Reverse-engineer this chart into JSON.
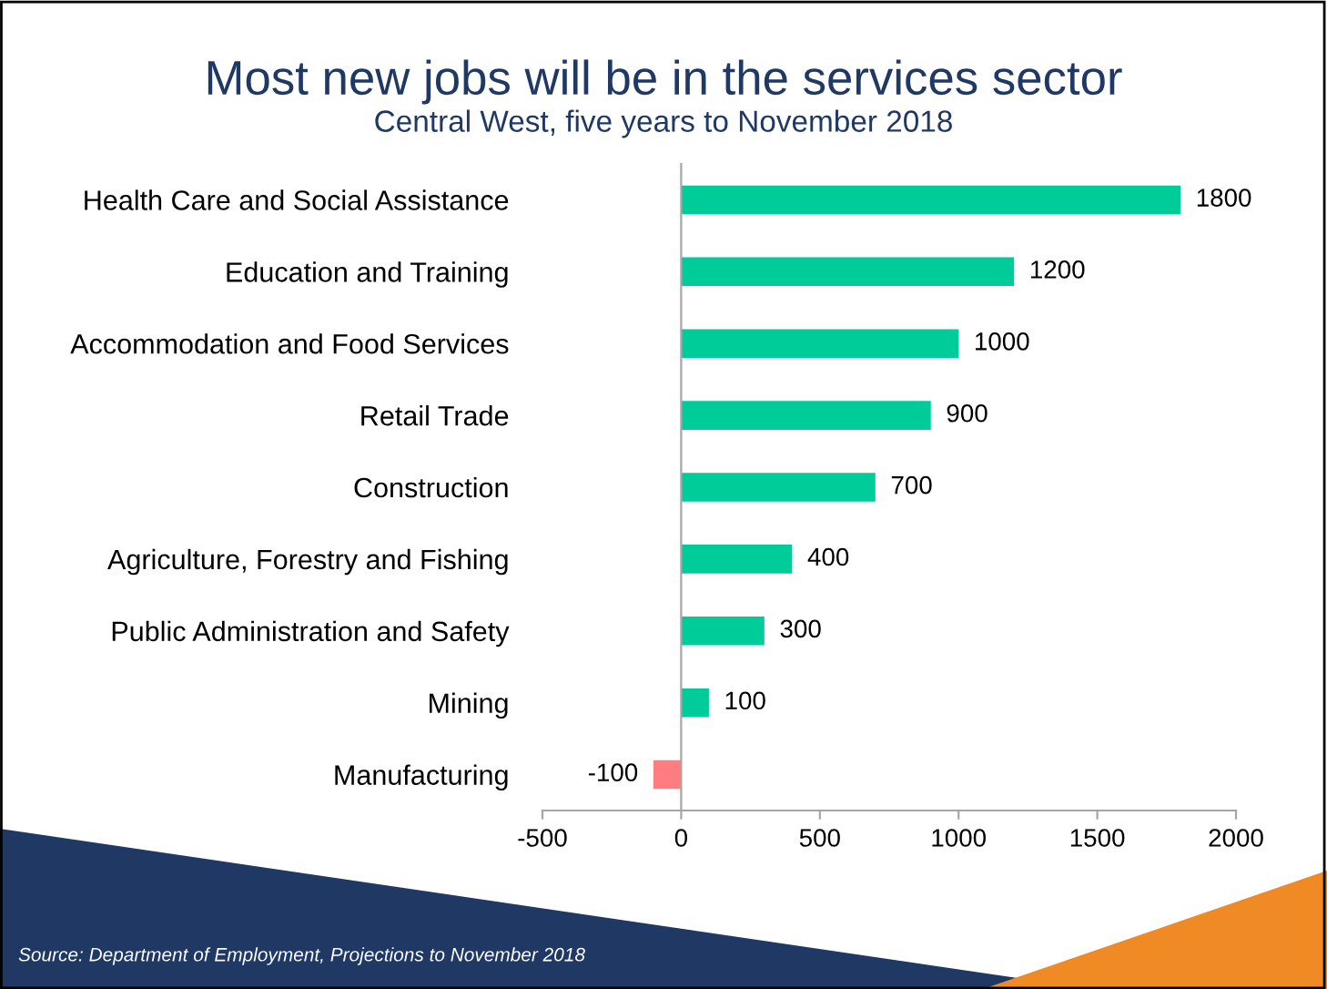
{
  "chart_data": {
    "type": "bar",
    "orientation": "horizontal",
    "title": "Most new jobs will be in the services sector",
    "subtitle": "Central West, five years to November 2018",
    "categories": [
      "Health Care and Social Assistance",
      "Education and Training",
      "Accommodation and Food Services",
      "Retail Trade",
      "Construction",
      "Agriculture, Forestry and Fishing",
      "Public Administration and Safety",
      "Mining",
      "Manufacturing"
    ],
    "values": [
      1800,
      1200,
      1000,
      900,
      700,
      400,
      300,
      100,
      -100
    ],
    "colors": [
      "#00cc99",
      "#00cc99",
      "#00cc99",
      "#00cc99",
      "#00cc99",
      "#00cc99",
      "#00cc99",
      "#00cc99",
      "#ff7c80"
    ],
    "xlim": [
      -500,
      2000
    ],
    "xticks": [
      -500,
      0,
      500,
      1000,
      1500,
      2000
    ],
    "data_labels": true,
    "annotations": [
      "Source: Department of Employment, Projections to November 2018"
    ]
  }
}
